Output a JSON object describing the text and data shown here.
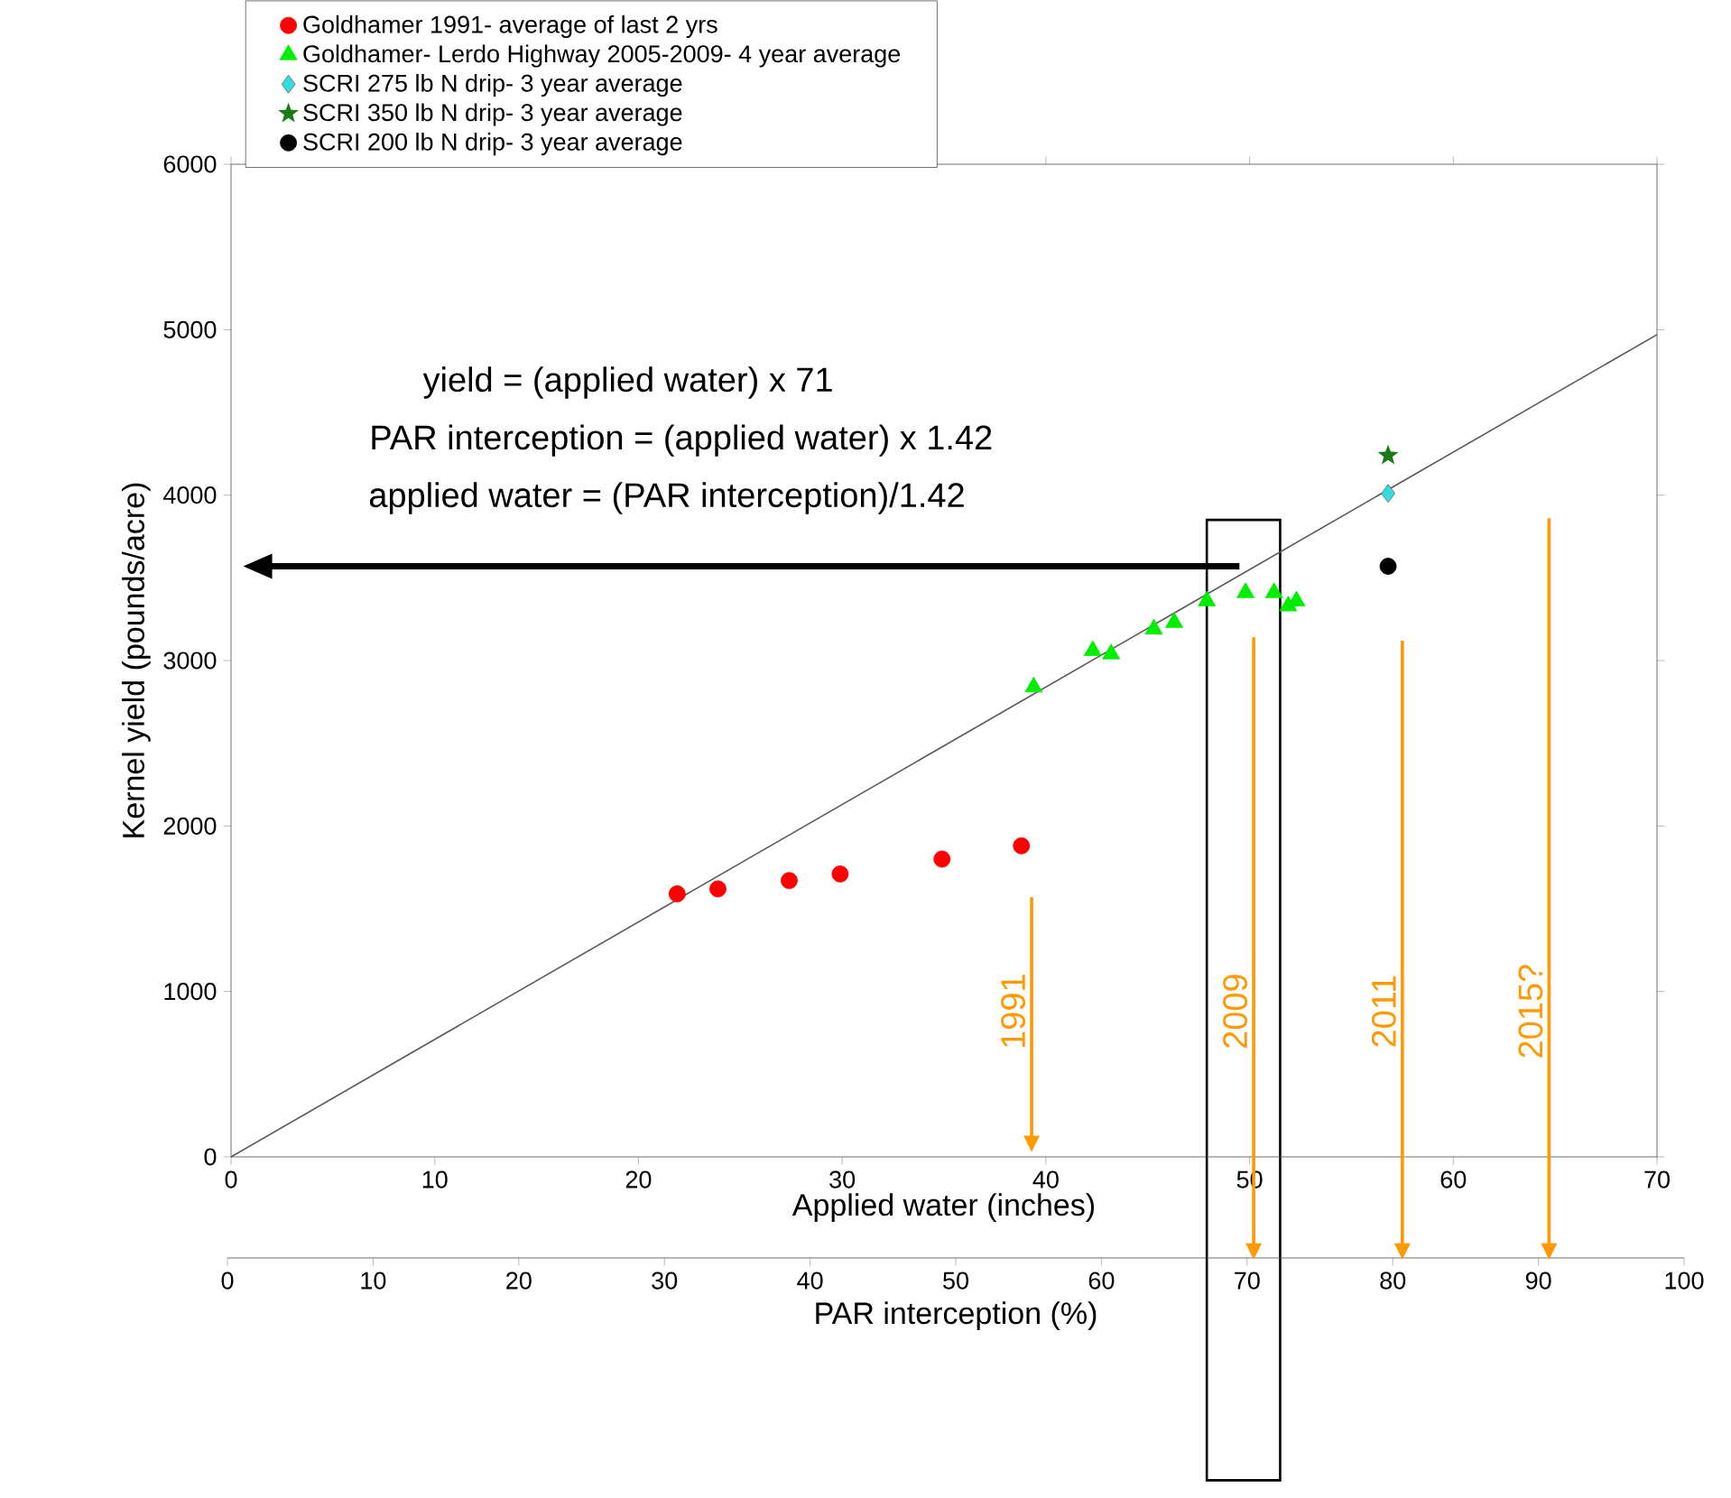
{
  "chart_data": {
    "type": "scatter",
    "xlabel": "Applied water (inches)",
    "ylabel": "Kernel yield (pounds/acre)",
    "x2label": "PAR interception (%)",
    "xlim": [
      0,
      70
    ],
    "xticks": [
      0,
      10,
      20,
      30,
      40,
      50,
      60,
      70
    ],
    "ylim": [
      0,
      6000
    ],
    "yticks": [
      0,
      1000,
      2000,
      3000,
      4000,
      5000,
      6000
    ],
    "x2lim": [
      0,
      100
    ],
    "x2ticks": [
      0,
      10,
      20,
      30,
      40,
      50,
      60,
      70,
      80,
      90,
      100
    ],
    "legend": "top left",
    "grid": false,
    "series": [
      {
        "name": "Goldhamer 1991- average of last 2 yrs",
        "color": "#ff0000",
        "marker": "circle",
        "x": [
          21.9,
          23.9,
          27.4,
          29.9,
          34.9,
          38.8
        ],
        "values": [
          1590,
          1620,
          1670,
          1710,
          1800,
          1880
        ]
      },
      {
        "name": "Goldhamer- Lerdo Highway 2005-2009- 4 year average",
        "color": "#00ee00",
        "marker": "triangle",
        "x": [
          39.4,
          42.3,
          43.2,
          45.3,
          46.3,
          47.9,
          49.8,
          51.2,
          51.9,
          52.3
        ],
        "values": [
          2840,
          3060,
          3040,
          3190,
          3230,
          3360,
          3410,
          3410,
          3330,
          3360
        ]
      },
      {
        "name": "SCRI 275 lb N drip- 3 year average",
        "color": "#33dddd",
        "marker": "diamond",
        "x": [
          56.8
        ],
        "values": [
          4010
        ]
      },
      {
        "name": "SCRI 350 lb N drip- 3 year average",
        "color": "#1a7a1a",
        "marker": "star",
        "x": [
          56.8
        ],
        "values": [
          4240
        ]
      },
      {
        "name": "SCRI 200 lb N drip- 3 year average",
        "color": "#000000",
        "marker": "circle",
        "x": [
          56.8
        ],
        "values": [
          3570
        ]
      },
      {
        "type": "line",
        "color": "#595959",
        "marker": "none",
        "line_style": "solid",
        "x": [
          0,
          70
        ],
        "values": [
          0,
          4970
        ]
      }
    ],
    "bands": [
      {
        "axis": "x",
        "from": 47.9,
        "to": 51.5,
        "color": "#000000"
      }
    ],
    "annotations": [
      "yield = (applied water) x 71",
      "PAR interception = (applied water) x 1.42",
      "applied water = (PAR interception)/1.42",
      "1991",
      "2009",
      "2011",
      "2015?"
    ]
  }
}
